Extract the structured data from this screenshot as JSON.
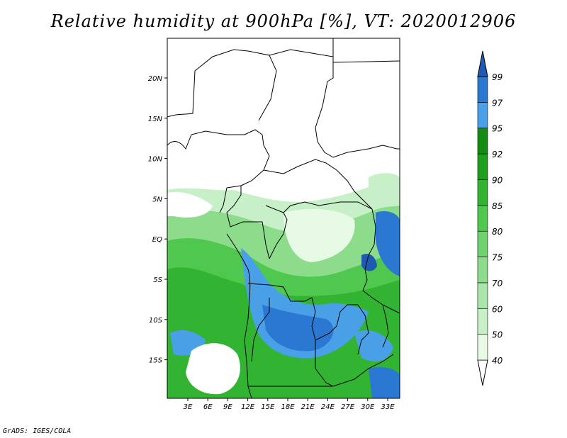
{
  "title": "Relative humidity at 900hPa [%], VT: 2020012906",
  "credit": "GrADS: IGES/COLA",
  "map": {
    "lat_ticks": [
      "20N",
      "15N",
      "10N",
      "5N",
      "EQ",
      "5S",
      "10S",
      "15S"
    ],
    "lon_ticks": [
      "3E",
      "6E",
      "9E",
      "12E",
      "15E",
      "18E",
      "21E",
      "24E",
      "27E",
      "30E",
      "33E"
    ]
  },
  "colorbar": {
    "levels": [
      "40",
      "50",
      "60",
      "70",
      "75",
      "80",
      "85",
      "90",
      "92",
      "95",
      "97",
      "99"
    ],
    "colors": [
      "#ffffff",
      "#e6fae6",
      "#c8f0c8",
      "#aae6aa",
      "#8cdc8c",
      "#6ed26e",
      "#50c850",
      "#32b432",
      "#1ea01e",
      "#148c14",
      "#4aa0e6",
      "#2a78d2",
      "#1e5ab4"
    ]
  }
}
